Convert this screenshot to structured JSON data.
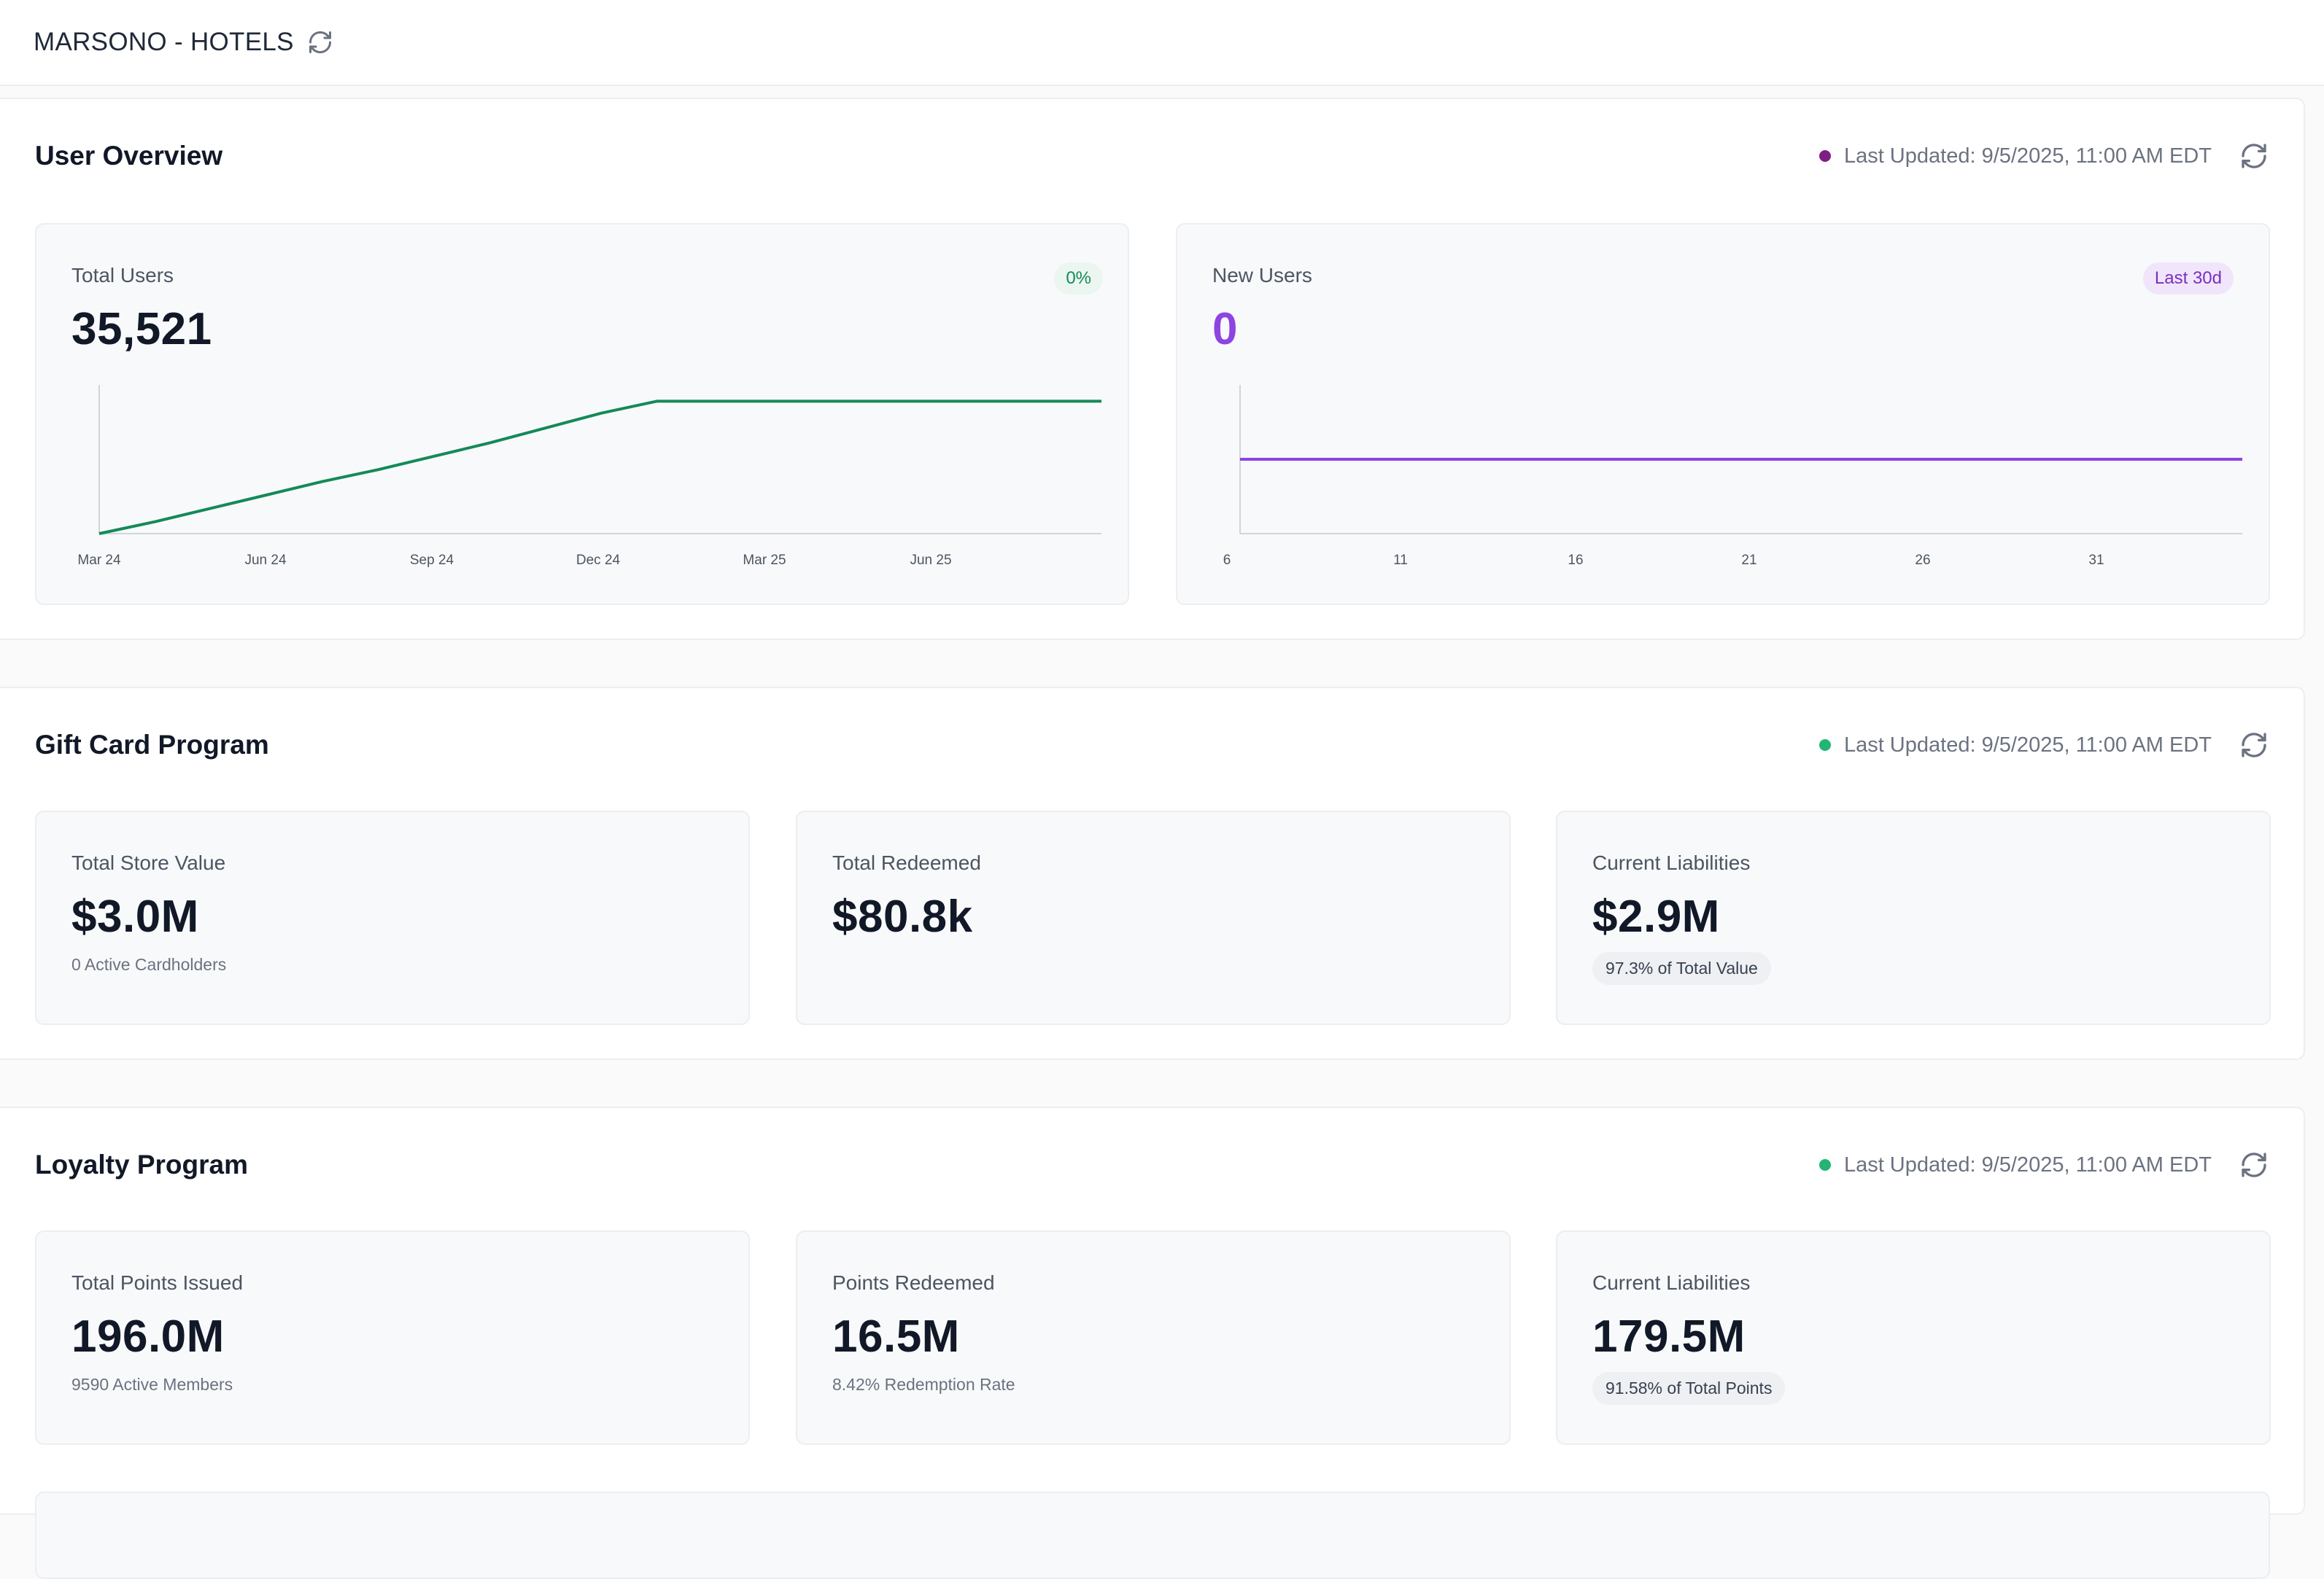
{
  "app": {
    "title": "MARSONO - HOTELS",
    "refresh_icon": "refresh-icon"
  },
  "colors": {
    "green": "#148a57",
    "purple": "#8e44e0",
    "purple_dot": "#7e1f86",
    "green_dot": "#22b573"
  },
  "user_overview": {
    "title": "User Overview",
    "last_updated": "Last Updated: 9/5/2025, 11:00 AM EDT",
    "total_users": {
      "label": "Total Users",
      "value": "35,521",
      "badge": "0%"
    },
    "new_users": {
      "label": "New Users",
      "value": "0",
      "badge": "Last 30d"
    }
  },
  "gift_card": {
    "title": "Gift Card Program",
    "last_updated": "Last Updated: 9/5/2025, 11:00 AM EDT",
    "cards": [
      {
        "label": "Total Store Value",
        "value": "$3.0M",
        "sub": "0 Active Cardholders"
      },
      {
        "label": "Total Redeemed",
        "value": "$80.8k"
      },
      {
        "label": "Current Liabilities",
        "value": "$2.9M",
        "pill": "97.3% of Total Value"
      }
    ]
  },
  "loyalty": {
    "title": "Loyalty Program",
    "last_updated": "Last Updated: 9/5/2025, 11:00 AM EDT",
    "cards": [
      {
        "label": "Total Points Issued",
        "value": "196.0M",
        "sub": "9590 Active Members"
      },
      {
        "label": "Points Redeemed",
        "value": "16.5M",
        "sub": "8.42% Redemption Rate"
      },
      {
        "label": "Current Liabilities",
        "value": "179.5M",
        "pill": "91.58% of Total Points"
      }
    ]
  },
  "chart_data": [
    {
      "type": "line",
      "x_ticks": [
        "Mar 24",
        "Jun 24",
        "Sep 24",
        "Dec 24",
        "Mar 25",
        "Jun 25"
      ],
      "x": [
        "2024-03",
        "2024-04",
        "2024-05",
        "2024-06",
        "2024-07",
        "2024-08",
        "2024-09",
        "2024-10",
        "2024-11",
        "2024-12",
        "2025-01",
        "2025-02",
        "2025-03",
        "2025-04",
        "2025-05",
        "2025-06",
        "2025-07",
        "2025-08",
        "2025-09"
      ],
      "series": [
        {
          "values": [
            0.0,
            0.08,
            0.17,
            0.26,
            0.35,
            0.43,
            0.52,
            0.61,
            0.71,
            0.81,
            0.89,
            0.89,
            0.89,
            0.89,
            0.89,
            0.89,
            0.89,
            0.89,
            0.89
          ]
        }
      ],
      "grid": false
    },
    {
      "type": "line",
      "x_ticks": [
        "6",
        "11",
        "16",
        "21",
        "26",
        "31"
      ],
      "x": [
        6,
        8,
        10,
        12,
        14,
        16,
        18,
        20,
        22,
        24,
        26,
        28,
        30,
        32,
        34,
        35
      ],
      "series": [
        {
          "values": [
            0,
            0,
            0,
            0,
            0,
            0,
            0,
            0,
            0,
            0,
            0,
            0,
            0,
            0,
            0,
            0
          ]
        }
      ],
      "grid": false
    }
  ]
}
